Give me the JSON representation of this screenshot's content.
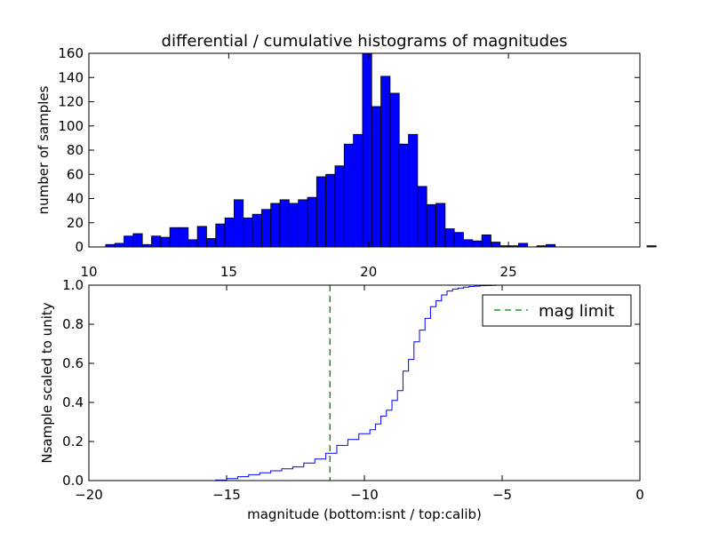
{
  "chart_data": [
    {
      "type": "bar",
      "title": "differential / cumulative histograms of magnitudes",
      "xlabel": "",
      "ylabel": "number of samples",
      "xlim": [
        10,
        29.7
      ],
      "ylim": [
        0,
        160
      ],
      "xticks": [
        10,
        15,
        20,
        25
      ],
      "yticks": [
        0,
        20,
        40,
        60,
        80,
        100,
        120,
        140,
        160
      ],
      "bin_edges_start": 10.6,
      "bin_width": 0.328,
      "values": [
        2,
        3,
        9,
        11,
        2,
        9,
        8,
        16,
        16,
        6,
        17,
        7,
        19,
        24,
        39,
        24,
        27,
        31,
        36,
        39,
        36,
        39,
        41,
        58,
        60,
        67,
        85,
        93,
        160,
        116,
        141,
        127,
        85,
        93,
        50,
        35,
        36,
        15,
        12,
        6,
        5,
        10,
        4,
        1,
        1,
        3,
        0,
        1,
        2,
        0,
        0,
        0,
        0,
        0,
        0,
        0,
        0,
        0,
        0,
        1
      ],
      "bar_color": "#0000ff",
      "edge_color": "#000000"
    },
    {
      "type": "line",
      "xlabel": "magnitude (bottom:isnt / top:calib)",
      "ylabel": "Nsample scaled to unity",
      "xlim": [
        -20,
        0
      ],
      "ylim": [
        0,
        1.0
      ],
      "xticks": [
        -20,
        -15,
        -10,
        -5,
        0
      ],
      "yticks": [
        0.0,
        0.2,
        0.4,
        0.6,
        0.8,
        1.0
      ],
      "step": true,
      "x": [
        -19.4,
        -15.4,
        -15.0,
        -14.6,
        -14.2,
        -13.8,
        -13.4,
        -13.0,
        -12.6,
        -12.2,
        -11.8,
        -11.4,
        -11.0,
        -10.6,
        -10.2,
        -9.8,
        -9.6,
        -9.4,
        -9.2,
        -9.0,
        -8.8,
        -8.6,
        -8.4,
        -8.2,
        -8.0,
        -7.8,
        -7.6,
        -7.4,
        -7.2,
        -7.0,
        -6.8,
        -6.6,
        -6.4,
        -6.2,
        -6.0,
        -5.8,
        -5.6,
        -5.4,
        -5.2,
        -4.4
      ],
      "y": [
        0.0,
        0.003,
        0.01,
        0.02,
        0.03,
        0.04,
        0.05,
        0.06,
        0.07,
        0.09,
        0.11,
        0.14,
        0.18,
        0.21,
        0.24,
        0.26,
        0.29,
        0.33,
        0.36,
        0.41,
        0.46,
        0.56,
        0.62,
        0.71,
        0.77,
        0.83,
        0.89,
        0.92,
        0.95,
        0.97,
        0.98,
        0.985,
        0.99,
        0.993,
        0.995,
        0.997,
        0.998,
        0.999,
        1.0,
        1.0
      ],
      "line_color": "#0000ff",
      "limit_x": -11.25,
      "limit_color": "#008000",
      "legend": {
        "label": "mag limit",
        "placement": "upper-right"
      }
    }
  ]
}
